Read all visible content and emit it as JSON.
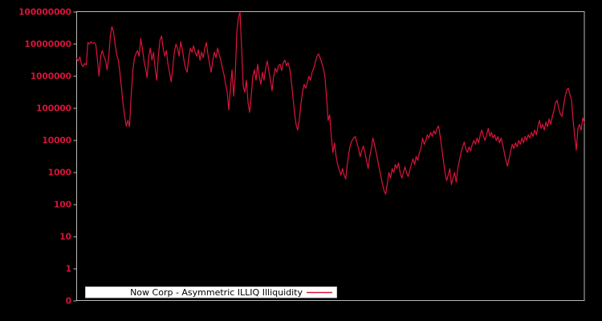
{
  "colors": {
    "background": "#000000",
    "axis": "#b9b9b9",
    "tick_label": "#dc143c",
    "series_line": "#dc143c",
    "legend_bg": "#ffffff",
    "legend_text": "#000000"
  },
  "legend": {
    "label": "Now Corp - Asymmetric ILLIQ Illiquidity"
  },
  "chart_data": {
    "type": "line",
    "title": "",
    "xlabel": "",
    "ylabel": "",
    "yscale": "symlog",
    "ylim": [
      0,
      100000000
    ],
    "grid": false,
    "x_axis_labels": [],
    "legend_position": "inside-bottom-left",
    "yticks": {
      "labels": [
        "100000000",
        "10000000",
        "1000000",
        "100000",
        "10000",
        "1000",
        "100",
        "10",
        "1",
        "0"
      ],
      "values": [
        100000000,
        10000000,
        1000000,
        100000,
        10000,
        1000,
        100,
        10,
        1,
        0
      ]
    },
    "series": [
      {
        "name": "Now Corp - Asymmetric ILLIQ Illiquidity",
        "color": "#dc143c",
        "values": [
          3550000.0,
          2980000.0,
          4000000.0,
          2370000.0,
          2000000.0,
          2500000.0,
          2240000.0,
          11200000.0,
          10000000.0,
          11900000.0,
          10600000.0,
          11200000.0,
          9400000.0,
          3160000.0,
          1000000.0,
          4200000.0,
          6300000.0,
          4200000.0,
          3160000.0,
          1580000.0,
          3760000.0,
          17800000.0,
          35000000.0,
          23700000.0,
          10000000.0,
          4700000.0,
          3160000.0,
          1330000.0,
          420000.0,
          133000.0,
          56000.0,
          28000.0,
          42000.0,
          26600.0,
          237000.0,
          1330000.0,
          3550000.0,
          5000000.0,
          6300000.0,
          4200000.0,
          15000000.0,
          7500000.0,
          3160000.0,
          1780000.0,
          890000.0,
          4200000.0,
          7500000.0,
          3160000.0,
          5600000.0,
          1780000.0,
          750000.0,
          4200000.0,
          13300000.0,
          17800000.0,
          7500000.0,
          4200000.0,
          6300000.0,
          2370000.0,
          1330000.0,
          670000.0,
          1780000.0,
          5600000.0,
          10000000.0,
          7500000.0,
          4200000.0,
          11900000.0,
          6700000.0,
          3160000.0,
          1780000.0,
          1330000.0,
          3760000.0,
          7500000.0,
          5600000.0,
          8900000.0,
          5600000.0,
          4200000.0,
          6700000.0,
          3160000.0,
          5600000.0,
          3760000.0,
          7500000.0,
          11200000.0,
          4700000.0,
          2370000.0,
          1330000.0,
          3160000.0,
          5600000.0,
          3760000.0,
          7500000.0,
          4700000.0,
          3160000.0,
          1780000.0,
          1120000.0,
          560000.0,
          316000.0,
          89000.0,
          420000.0,
          1580000.0,
          237000.0,
          1000000.0,
          23700000.0,
          67000000.0,
          100000000.0,
          7500000.0,
          500000.0,
          316000.0,
          750000.0,
          150000.0,
          75000.0,
          237000.0,
          1000000.0,
          1580000.0,
          750000.0,
          2370000.0,
          1000000.0,
          560000.0,
          1330000.0,
          750000.0,
          1780000.0,
          2980000.0,
          1500000.0,
          750000.0,
          355000.0,
          1000000.0,
          1780000.0,
          1330000.0,
          2100000.0,
          2370000.0,
          1500000.0,
          2660000.0,
          3160000.0,
          2100000.0,
          2660000.0,
          1780000.0,
          750000.0,
          237000.0,
          75000.0,
          31600.0,
          21000.0,
          42000.0,
          133000.0,
          316000.0,
          560000.0,
          420000.0,
          630000.0,
          1000000.0,
          750000.0,
          1330000.0,
          1780000.0,
          2660000.0,
          4200000.0,
          5000000.0,
          3760000.0,
          2660000.0,
          1780000.0,
          1000000.0,
          237000.0,
          42000.0,
          63000.0,
          13300.0,
          4200.0,
          8400.0,
          3160.0,
          1780.0,
          1190.0,
          840,
          1330.0,
          840,
          630,
          1780.0,
          4200.0,
          7500.0,
          10000.0,
          11900.0,
          13300.0,
          8400.0,
          5600.0,
          3160.0,
          4700.0,
          6700.0,
          4200.0,
          2370.0,
          1330.0,
          3160.0,
          5600.0,
          11900.0,
          7500.0,
          4200.0,
          2370.0,
          1330.0,
          750,
          420,
          266,
          211,
          470,
          1000.0,
          670,
          1330.0,
          1000.0,
          1780.0,
          1330.0,
          2000.0,
          1000.0,
          670,
          1000.0,
          1500.0,
          1000.0,
          750,
          1190.0,
          1780.0,
          2660.0,
          1780.0,
          3160.0,
          2370.0,
          4200.0,
          5600.0,
          11900.0,
          7500.0,
          10000.0,
          15000.0,
          11900.0,
          17800.0,
          13300.0,
          20000.0,
          15800.0,
          23700.0,
          28000.0,
          13300.0,
          5600.0,
          2370.0,
          1000.0,
          560,
          840,
          1330.0,
          420,
          670,
          1000.0,
          500,
          1330.0,
          2370.0,
          4200.0,
          6300.0,
          8900.0,
          5600.0,
          4200.0,
          6300.0,
          4700.0,
          7500.0,
          10000.0,
          7500.0,
          11900.0,
          8400.0,
          15000.0,
          21000.0,
          13300.0,
          10000.0,
          15000.0,
          23700.0,
          13300.0,
          17800.0,
          11900.0,
          15000.0,
          10000.0,
          13300.0,
          8400.0,
          11900.0,
          7500.0,
          4200.0,
          2370.0,
          1580.0,
          2660.0,
          4700.0,
          7500.0,
          5600.0,
          8400.0,
          6300.0,
          10000.0,
          7500.0,
          11900.0,
          8400.0,
          13300.0,
          10000.0,
          15000.0,
          11900.0,
          17800.0,
          13300.0,
          21000.0,
          15000.0,
          26600.0,
          42000.0,
          23700.0,
          31600.0,
          21000.0,
          37600.0,
          26600.0,
          47000.0,
          31600.0,
          56000.0,
          84000.0,
          150000.0,
          178000.0,
          100000.0,
          67000.0,
          56000.0,
          119000.0,
          237000.0,
          376000.0,
          420000.0,
          266000.0,
          178000.0,
          42000.0,
          13300.0,
          5000.0,
          23700.0,
          31600.0,
          21000.0,
          50000.0,
          35500.0
        ]
      }
    ]
  }
}
